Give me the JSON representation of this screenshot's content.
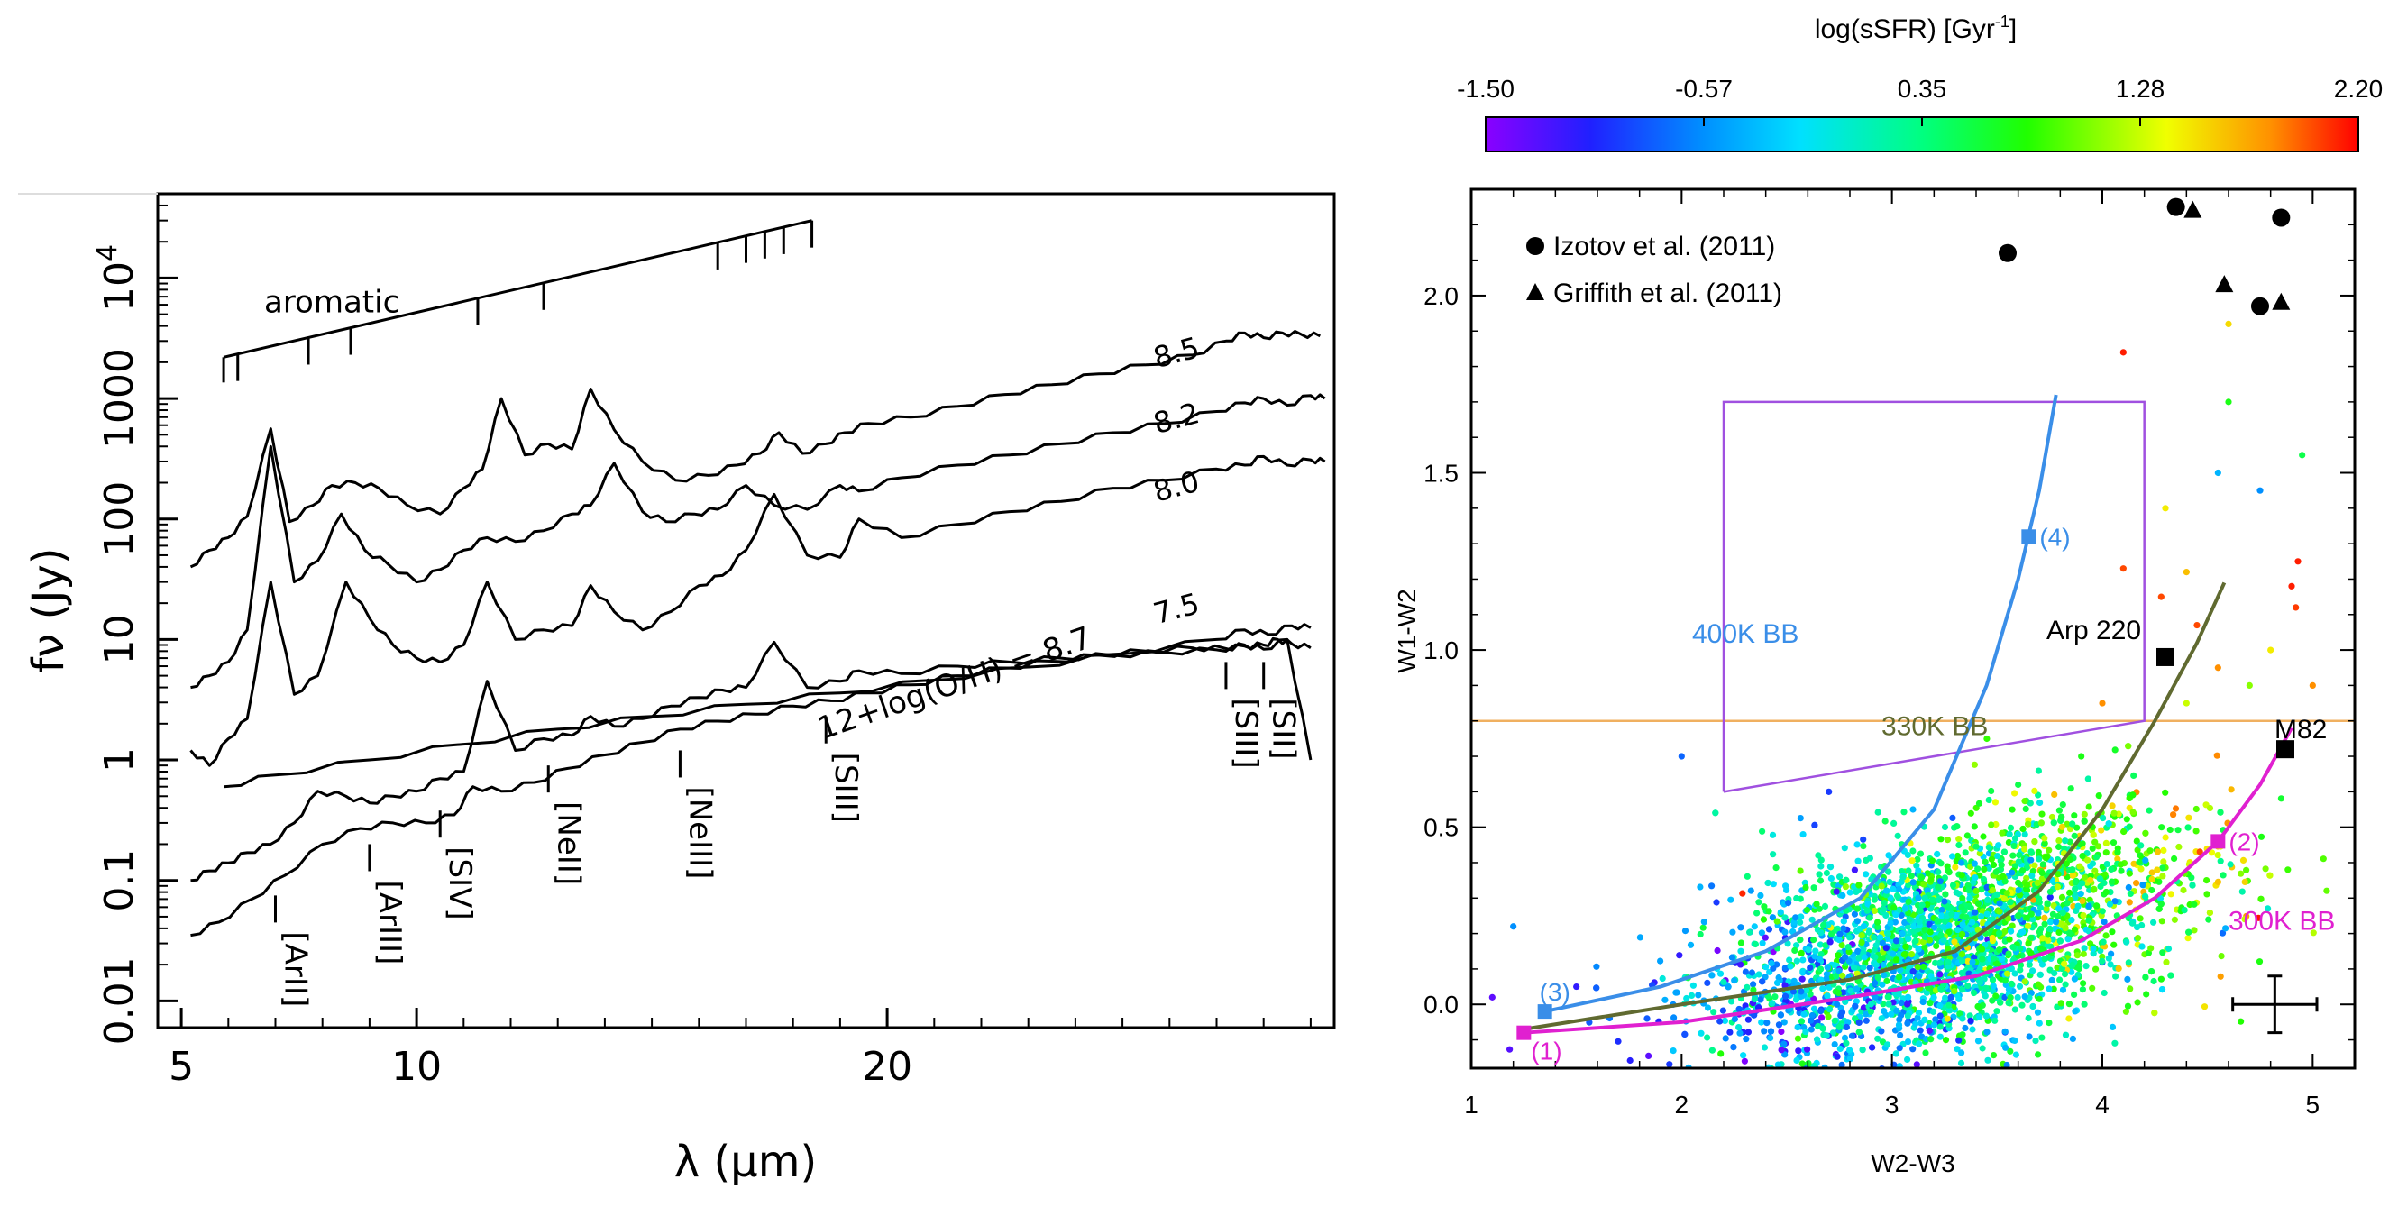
{
  "chart_data": [
    {
      "type": "line",
      "title": "",
      "xlabel": "λ (μm)",
      "ylabel": "fν (Jy)",
      "xscale": "linear",
      "yscale": "log",
      "xlim": [
        4.5,
        29.5
      ],
      "ylim": [
        0.006,
        50000
      ],
      "xticks": [
        {
          "v": 5,
          "label": "5"
        },
        {
          "v": 10,
          "label": "10"
        },
        {
          "v": 20,
          "label": "20"
        }
      ],
      "yticks": [
        {
          "v": 0.01,
          "label": "0.01"
        },
        {
          "v": 0.1,
          "label": "0.1"
        },
        {
          "v": 1,
          "label": "1"
        },
        {
          "v": 10,
          "label": "10"
        },
        {
          "v": 100,
          "label": "100"
        },
        {
          "v": 1000,
          "label": "1000"
        },
        {
          "v": 10000,
          "label": "10",
          "sup": "4"
        }
      ],
      "series": [
        {
          "name": "8.7",
          "label": "12+log(O/H) = 8.7",
          "x": [
            5.9,
            7,
            9,
            11,
            13,
            15,
            17,
            19,
            21,
            23,
            25,
            27,
            27.6,
            28.1,
            28.6,
            29
          ],
          "y": [
            0.6,
            0.75,
            1.0,
            1.35,
            1.8,
            2.3,
            2.9,
            3.6,
            4.6,
            5.9,
            7.6,
            10.0,
            12.0,
            11.0,
            13.0,
            12.5
          ]
        },
        {
          "name": "8.5",
          "label": "8.5",
          "x": [
            5.2,
            5.6,
            6,
            6.4,
            6.9,
            7.3,
            7.8,
            8.2,
            8.7,
            9.2,
            9.8,
            10.5,
            11,
            11.4,
            11.8,
            12.3,
            12.8,
            13.3,
            13.7,
            14.2,
            14.8,
            15.5,
            16.2,
            16.8,
            17.3,
            17.7,
            18.2,
            18.7,
            19.1,
            19.6,
            20.5,
            21.5,
            22.5,
            23.5,
            24.5,
            25.5,
            26.5,
            27.2,
            27.6,
            28.0,
            28.4,
            28.8,
            29.2
          ],
          "y": [
            40,
            55,
            70,
            105,
            560,
            95,
            130,
            190,
            200,
            180,
            130,
            110,
            180,
            260,
            1000,
            340,
            420,
            380,
            1200,
            550,
            300,
            210,
            230,
            280,
            350,
            520,
            350,
            420,
            520,
            620,
            700,
            860,
            1080,
            1300,
            1600,
            1900,
            2300,
            3000,
            3500,
            3200,
            3500,
            3400,
            3300
          ]
        },
        {
          "name": "8.2",
          "label": "8.2",
          "x": [
            5.2,
            5.6,
            6,
            6.4,
            6.9,
            7.4,
            7.9,
            8.4,
            8.9,
            9.4,
            10,
            10.5,
            11,
            11.5,
            12.1,
            12.7,
            13.3,
            13.7,
            14.2,
            14.8,
            15.3,
            15.9,
            16.4,
            17,
            17.6,
            18.3,
            19,
            19.4,
            20.3,
            21.5,
            22.6,
            23.7,
            24.8,
            25.9,
            27,
            27.6,
            28,
            28.5,
            29,
            29.3
          ],
          "y": [
            4,
            5,
            6.5,
            12,
            400,
            30,
            45,
            110,
            55,
            42,
            30,
            38,
            55,
            70,
            65,
            80,
            110,
            130,
            290,
            115,
            95,
            110,
            120,
            190,
            130,
            120,
            190,
            170,
            220,
            280,
            340,
            420,
            520,
            620,
            780,
            920,
            1000,
            880,
            1060,
            1000
          ]
        },
        {
          "name": "8.0",
          "label": "8.0",
          "x": [
            5.2,
            5.6,
            6,
            6.4,
            6.9,
            7.4,
            7.9,
            8.5,
            9,
            9.5,
            10,
            10.5,
            11,
            11.5,
            12.1,
            12.7,
            13.3,
            13.7,
            14.2,
            14.8,
            15.4,
            16,
            16.5,
            17,
            17.6,
            18.3,
            19,
            19.4,
            20.3,
            21.5,
            22.6,
            23.7,
            24.8,
            25.9,
            27,
            27.6,
            28,
            28.5,
            29,
            29.3
          ],
          "y": [
            1.2,
            0.9,
            1.5,
            2.2,
            30,
            3.5,
            5,
            30,
            15,
            9,
            7,
            6.5,
            9,
            30,
            10,
            12,
            13,
            28,
            17,
            12,
            17,
            28,
            34,
            55,
            160,
            50,
            48,
            100,
            70,
            90,
            115,
            140,
            180,
            210,
            260,
            280,
            330,
            280,
            310,
            300
          ]
        },
        {
          "name": "7.5",
          "label": "7.5",
          "x": [
            5.2,
            5.6,
            6,
            6.4,
            6.9,
            7.4,
            7.9,
            8.5,
            9,
            9.5,
            10,
            10.5,
            11,
            11.5,
            12.1,
            12.7,
            13.3,
            13.7,
            14.2,
            14.8,
            15.4,
            16,
            16.5,
            17,
            17.6,
            18.3,
            19,
            19.4,
            20.3,
            21.5,
            22.6,
            23.7,
            24.8,
            25.9,
            27,
            27.6,
            28,
            28.3,
            28.6,
            29
          ],
          "y": [
            0.1,
            0.12,
            0.14,
            0.17,
            0.2,
            0.3,
            0.55,
            0.5,
            0.44,
            0.5,
            0.55,
            0.7,
            0.8,
            4.5,
            1.2,
            1.5,
            1.6,
            2.3,
            1.9,
            2.2,
            2.8,
            3.3,
            3.8,
            4.0,
            9.5,
            4.0,
            4.5,
            5.5,
            5.2,
            6.0,
            6.5,
            7.0,
            7.4,
            7.8,
            8.2,
            8.8,
            9.0,
            10.0,
            9.2,
            8.5
          ]
        },
        {
          "name": "lowest",
          "label": "",
          "x": [
            5.2,
            5.8,
            6.5,
            7.2,
            8.0,
            8.8,
            9.5,
            10.2,
            10.8,
            11.2,
            11.8,
            12.5,
            13.2,
            14,
            14.8,
            15.6,
            16.4,
            17.2,
            18,
            18.8,
            19.6,
            20.5,
            21.5,
            22.5,
            23.5,
            24.5,
            25.5,
            26.5,
            27.2,
            27.6,
            28,
            28.5,
            29
          ],
          "y": [
            0.035,
            0.045,
            0.07,
            0.11,
            0.2,
            0.27,
            0.3,
            0.3,
            0.35,
            0.6,
            0.55,
            0.65,
            0.85,
            1.1,
            1.4,
            1.8,
            2.1,
            2.4,
            2.8,
            3.1,
            3.6,
            4.2,
            5.0,
            5.8,
            6.6,
            7.4,
            8.0,
            8.5,
            8.4,
            9.0,
            8.3,
            10.0,
            1.0
          ]
        }
      ],
      "annotations": {
        "aromatic_label": "aromatic",
        "aromatic_ticks": [
          6.2,
          7.7,
          8.6,
          11.3,
          12.7,
          16.4,
          17.0,
          17.4,
          17.8
        ],
        "lines": [
          {
            "label": "[ArII]",
            "x": 7.0
          },
          {
            "label": "[ArIII]",
            "x": 9.0
          },
          {
            "label": "[SIV]",
            "x": 10.5
          },
          {
            "label": "[NeII]",
            "x": 12.8
          },
          {
            "label": "[NeIII]",
            "x": 15.6
          },
          {
            "label": "[SIII]",
            "x": 18.7
          },
          {
            "label": "[SIII]",
            "x": 27.2
          },
          {
            "label": "[SII]",
            "x": 28.0
          }
        ]
      }
    },
    {
      "type": "scatter",
      "title": "",
      "xlabel": "W2-W3",
      "ylabel": "W1-W2",
      "xlim": [
        1,
        5.2
      ],
      "ylim": [
        -0.18,
        2.3
      ],
      "xticks": [
        1,
        2,
        3,
        4,
        5
      ],
      "yticks": [
        "0.0",
        "0.5",
        "1.0",
        "1.5",
        "2.0"
      ],
      "colorbar": {
        "label": "log(sSFR) [Gyr",
        "label_sup": "-1",
        "label_close": "]",
        "ticks": [
          "-1.50",
          "-0.57",
          "0.35",
          "1.28",
          "2.20"
        ],
        "range": [
          -1.5,
          2.2
        ]
      },
      "legend": [
        {
          "marker": "circle",
          "label": "Izotov et al. (2011)"
        },
        {
          "marker": "triangle",
          "label": "Griffith et al. (2011)"
        }
      ],
      "izotov_points": [
        [
          3.55,
          2.12
        ],
        [
          4.35,
          2.25
        ],
        [
          4.85,
          2.22
        ],
        [
          4.75,
          1.97
        ]
      ],
      "griffith_points": [
        [
          4.43,
          2.24
        ],
        [
          4.58,
          2.03
        ],
        [
          4.85,
          1.98
        ]
      ],
      "black_squares": [
        {
          "label": "Arp 220",
          "x": 4.3,
          "y": 0.98
        },
        {
          "label": "M82",
          "x": 4.87,
          "y": 0.72
        }
      ],
      "horizontal_line": {
        "y": 0.8,
        "color": "#f0b060"
      },
      "purple_box": {
        "color": "#a050e0",
        "x": [
          2.2,
          2.2,
          4.2,
          4.2,
          2.2
        ],
        "y": [
          0.6,
          1.7,
          1.7,
          0.8,
          0.6
        ]
      },
      "curves": [
        {
          "name": "400K BB",
          "color": "#3a8ee8",
          "x": [
            1.35,
            1.9,
            2.4,
            2.85,
            3.2,
            3.45,
            3.6,
            3.7,
            3.78
          ],
          "y": [
            -0.02,
            0.05,
            0.15,
            0.3,
            0.55,
            0.9,
            1.2,
            1.45,
            1.72
          ],
          "markers": [
            {
              "label": "(3)",
              "x": 1.35,
              "y": -0.02
            },
            {
              "label": "(4)",
              "x": 3.65,
              "y": 1.32
            }
          ]
        },
        {
          "name": "330K BB",
          "color": "#606a30",
          "x": [
            1.25,
            2.0,
            2.8,
            3.3,
            3.7,
            4.0,
            4.25,
            4.45,
            4.58
          ],
          "y": [
            -0.07,
            0.0,
            0.07,
            0.15,
            0.32,
            0.55,
            0.8,
            1.02,
            1.19
          ],
          "markers": []
        },
        {
          "name": "300K BB",
          "color": "#e020d0",
          "x": [
            1.25,
            2.0,
            2.8,
            3.4,
            3.9,
            4.25,
            4.55,
            4.75,
            4.9
          ],
          "y": [
            -0.08,
            -0.05,
            0.02,
            0.08,
            0.18,
            0.3,
            0.46,
            0.62,
            0.78
          ],
          "markers": [
            {
              "label": "(1)",
              "x": 1.25,
              "y": -0.08
            },
            {
              "label": "(2)",
              "x": 4.55,
              "y": 0.46
            }
          ]
        }
      ],
      "error_bar": {
        "x": 4.82,
        "y": 0.0,
        "dx": 0.2,
        "dy": 0.08
      },
      "scatter_cloud": {
        "n": 3200,
        "center": [
          3.25,
          0.18
        ],
        "spread": [
          0.55,
          0.15
        ],
        "tilt": 0.16
      }
    }
  ]
}
